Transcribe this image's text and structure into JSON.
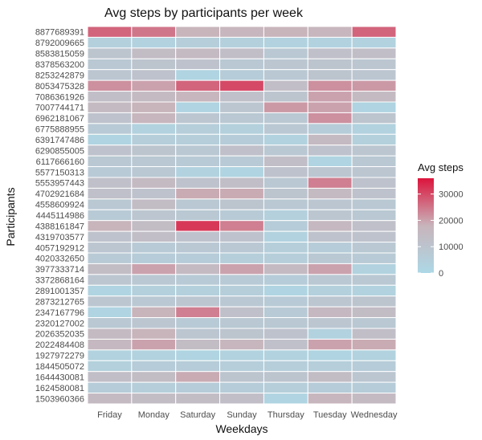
{
  "chart_data": {
    "type": "heatmap",
    "title": "Avg steps by participants per week",
    "xlabel": "Weekdays",
    "ylabel": "Participants",
    "x_categories": [
      "Friday",
      "Monday",
      "Saturday",
      "Sunday",
      "Thursday",
      "Tuesday",
      "Wednesday"
    ],
    "y_categories": [
      "8877689391",
      "8792009665",
      "8583815059",
      "8378563200",
      "8253242879",
      "8053475328",
      "7086361926",
      "7007744171",
      "6962181067",
      "6775888955",
      "6391747486",
      "6290855005",
      "6117666160",
      "5577150313",
      "5553957443",
      "4702921684",
      "4558609924",
      "4445114986",
      "4388161847",
      "4319703577",
      "4057192912",
      "4020332650",
      "3977333714",
      "3372868164",
      "2891001357",
      "2873212765",
      "2347167796",
      "2320127002",
      "2026352035",
      "2022484408",
      "1927972279",
      "1844505072",
      "1644430081",
      "1624580081",
      "1503960366"
    ],
    "values": [
      [
        27000,
        25000,
        18000,
        17000,
        18000,
        17000,
        27000
      ],
      [
        4000,
        3000,
        5000,
        4000,
        3000,
        3000,
        3000
      ],
      [
        10000,
        14000,
        15000,
        13000,
        8000,
        12000,
        13000
      ],
      [
        8000,
        10000,
        11000,
        8000,
        9000,
        10000,
        9000
      ],
      [
        9000,
        11000,
        2000,
        6000,
        8000,
        10000,
        9000
      ],
      [
        22000,
        20000,
        27000,
        30000,
        13000,
        22000,
        21000
      ],
      [
        13000,
        15000,
        17000,
        12000,
        10000,
        20000,
        15000
      ],
      [
        15000,
        18000,
        2000,
        9000,
        21000,
        20000,
        2000
      ],
      [
        11000,
        17000,
        9000,
        8000,
        8000,
        22000,
        10000
      ],
      [
        7000,
        3000,
        5000,
        4000,
        8000,
        6000,
        3000
      ],
      [
        2000,
        5000,
        5000,
        6000,
        3000,
        15000,
        4000
      ],
      [
        11000,
        10000,
        8000,
        12000,
        8000,
        11000,
        9000
      ],
      [
        8000,
        8000,
        7000,
        7000,
        13000,
        2000,
        8000
      ],
      [
        7000,
        8000,
        3000,
        2000,
        11000,
        9000,
        9000
      ],
      [
        12000,
        15000,
        11000,
        13000,
        8000,
        24000,
        11000
      ],
      [
        12000,
        11000,
        19000,
        19000,
        10000,
        15000,
        11000
      ],
      [
        8000,
        14000,
        8000,
        10000,
        8000,
        9000,
        8000
      ],
      [
        7000,
        9000,
        8000,
        7000,
        4000,
        9000,
        8000
      ],
      [
        18000,
        14000,
        32000,
        24000,
        6000,
        16000,
        12000
      ],
      [
        11000,
        13000,
        11000,
        11000,
        3000,
        11000,
        11000
      ],
      [
        9000,
        7000,
        8000,
        8000,
        5000,
        6000,
        8000
      ],
      [
        7000,
        6000,
        6000,
        5000,
        5000,
        8000,
        7000
      ],
      [
        14000,
        20000,
        15000,
        20000,
        15000,
        20000,
        3000
      ],
      [
        9000,
        8000,
        7000,
        7000,
        6000,
        8000,
        8000
      ],
      [
        2000,
        4000,
        4000,
        5000,
        2000,
        4000,
        3000
      ],
      [
        9000,
        8000,
        9000,
        8000,
        7000,
        9000,
        10000
      ],
      [
        2000,
        18000,
        24000,
        12000,
        7000,
        16000,
        14000
      ],
      [
        8000,
        9000,
        7000,
        8000,
        8000,
        9000,
        8000
      ],
      [
        15000,
        18000,
        9000,
        10000,
        11000,
        3000,
        13000
      ],
      [
        16000,
        20000,
        14000,
        17000,
        12000,
        20000,
        19000
      ],
      [
        3000,
        3000,
        2000,
        3000,
        3000,
        2000,
        3000
      ],
      [
        4000,
        6000,
        6000,
        5000,
        5000,
        5000,
        6000
      ],
      [
        13000,
        14000,
        19000,
        10000,
        10000,
        14000,
        9000
      ],
      [
        6000,
        5000,
        6000,
        6000,
        5000,
        6000,
        6000
      ],
      [
        15000,
        14000,
        14000,
        13000,
        2000,
        17000,
        15000
      ]
    ],
    "legend": {
      "title": "Avg steps",
      "position": "right",
      "ticks": [
        0,
        10000,
        20000,
        30000
      ],
      "range": [
        0,
        36000
      ],
      "color_low": "#add8e6",
      "color_mid": "#c8b4bb",
      "color_high": "#dc143c"
    }
  }
}
